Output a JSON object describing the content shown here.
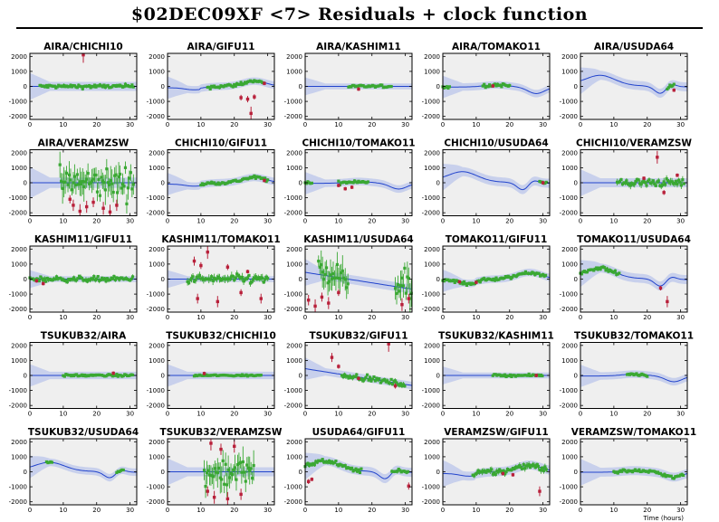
{
  "header": {
    "title": "$02DEC09XF <7> Residuals + clock function"
  },
  "chart_data": {
    "type": "scatter",
    "title": "$02DEC09XF <7> Residuals + clock function",
    "xlabel": "Time (hours)",
    "xlim": [
      0,
      32
    ],
    "ylim": [
      -2200,
      2200
    ],
    "x_ticks": [
      0,
      10,
      20,
      30
    ],
    "y_ticks": [
      -2000,
      -1000,
      0,
      1000,
      2000
    ],
    "grid": false,
    "colors": {
      "good": "#3aa833",
      "flagged": "#b8203a",
      "clock_line": "#2244cc",
      "clock_band": "#c8d0ec",
      "panel_bg": "#efefef"
    },
    "panels": [
      {
        "name": "AIRA/CHICHI10",
        "shape": "flat",
        "band": 300,
        "amp": 0,
        "noise": 90,
        "coverage": [
          [
            3,
            31
          ]
        ],
        "flagged": [
          [
            16,
            2100
          ]
        ]
      },
      {
        "name": "AIRA/GIFU11",
        "shape": "bump",
        "band": 250,
        "amp": 350,
        "noise": 90,
        "coverage": [
          [
            12,
            29
          ]
        ],
        "flagged": [
          [
            22,
            -750
          ],
          [
            24,
            -850
          ],
          [
            26,
            -700
          ],
          [
            25,
            -1800
          ],
          [
            29,
            200
          ]
        ]
      },
      {
        "name": "AIRA/KASHIM11",
        "shape": "flat",
        "band": 200,
        "amp": 0,
        "noise": 60,
        "coverage": [
          [
            13,
            26
          ]
        ],
        "flagged": [
          [
            16,
            -180
          ]
        ]
      },
      {
        "name": "AIRA/TOMAKO11",
        "shape": "tomako",
        "band": 250,
        "amp": 400,
        "noise": 80,
        "coverage": [
          [
            0,
            2
          ],
          [
            12,
            20
          ]
        ],
        "flagged": [
          [
            15,
            30
          ]
        ]
      },
      {
        "name": "AIRA/USUDA64",
        "shape": "usuda",
        "band": 300,
        "amp": 700,
        "noise": 80,
        "coverage": [
          [
            26,
            28
          ]
        ],
        "flagged": [
          [
            28,
            -250
          ]
        ]
      },
      {
        "name": "AIRA/VERAMZSW",
        "shape": "flat",
        "band": 350,
        "amp": 0,
        "noise": 700,
        "coverage": [
          [
            9,
            31
          ]
        ],
        "flagged": [
          [
            12,
            -1100
          ],
          [
            13,
            -1500
          ],
          [
            15,
            -1900
          ],
          [
            17,
            -1600
          ],
          [
            19,
            -1300
          ],
          [
            22,
            -1700
          ],
          [
            24,
            -1950
          ],
          [
            26,
            -1500
          ]
        ]
      },
      {
        "name": "CHICHI10/GIFU11",
        "shape": "bump",
        "band": 250,
        "amp": 350,
        "noise": 80,
        "coverage": [
          [
            10,
            30
          ]
        ],
        "flagged": [
          [
            29,
            150
          ]
        ]
      },
      {
        "name": "CHICHI10/TOMAKO11",
        "shape": "tomako",
        "band": 250,
        "amp": 350,
        "noise": 80,
        "coverage": [
          [
            0,
            2
          ],
          [
            10,
            19
          ]
        ],
        "flagged": [
          [
            10,
            -180
          ],
          [
            12,
            -400
          ],
          [
            14,
            -300
          ]
        ]
      },
      {
        "name": "CHICHI10/USUDA64",
        "shape": "usuda",
        "band": 300,
        "amp": 700,
        "noise": 80,
        "coverage": [
          [
            29,
            31
          ]
        ],
        "flagged": [
          [
            30,
            0
          ]
        ]
      },
      {
        "name": "CHICHI10/VERAMZSW",
        "shape": "flat",
        "band": 300,
        "amp": 0,
        "noise": 180,
        "coverage": [
          [
            11,
            31
          ]
        ],
        "flagged": [
          [
            19,
            300
          ],
          [
            23,
            1700
          ],
          [
            25,
            -650
          ],
          [
            29,
            500
          ]
        ]
      },
      {
        "name": "KASHIM11/GIFU11",
        "shape": "flat",
        "band": 200,
        "amp": 0,
        "noise": 120,
        "coverage": [
          [
            0,
            31
          ]
        ],
        "flagged": [
          [
            2,
            -120
          ],
          [
            4,
            -300
          ]
        ]
      },
      {
        "name": "KASHIM11/TOMAKO11",
        "shape": "flat",
        "band": 200,
        "amp": 0,
        "noise": 200,
        "coverage": [
          [
            6,
            30
          ]
        ],
        "flagged": [
          [
            8,
            1200
          ],
          [
            9,
            -1300
          ],
          [
            10,
            900
          ],
          [
            12,
            1800
          ],
          [
            15,
            -1500
          ],
          [
            18,
            800
          ],
          [
            22,
            -900
          ],
          [
            24,
            500
          ],
          [
            28,
            -1300
          ]
        ]
      },
      {
        "name": "KASHIM11/USUDA64",
        "shape": "slope",
        "band": 300,
        "amp": 0,
        "noise": 700,
        "coverage": [
          [
            4,
            13
          ],
          [
            27,
            32
          ]
        ],
        "flagged": [
          [
            1,
            -1400
          ],
          [
            3,
            -1800
          ],
          [
            5,
            -1200
          ],
          [
            7,
            -1600
          ],
          [
            10,
            -900
          ],
          [
            29,
            -1700
          ],
          [
            31,
            -1300
          ]
        ]
      },
      {
        "name": "TOMAKO11/GIFU11",
        "shape": "bump",
        "band": 250,
        "amp": 450,
        "noise": 90,
        "coverage": [
          [
            0,
            31
          ]
        ],
        "flagged": [
          [
            5,
            -180
          ],
          [
            10,
            -220
          ]
        ]
      },
      {
        "name": "TOMAKO11/USUDA64",
        "shape": "usuda",
        "band": 300,
        "amp": 700,
        "noise": 100,
        "coverage": [
          [
            0,
            12
          ]
        ],
        "flagged": [
          [
            24,
            -600
          ],
          [
            26,
            -1500
          ]
        ]
      },
      {
        "name": "TSUKUB32/AIRA",
        "shape": "flat",
        "band": 250,
        "amp": 0,
        "noise": 50,
        "coverage": [
          [
            10,
            31
          ]
        ],
        "flagged": [
          [
            25,
            150
          ]
        ]
      },
      {
        "name": "TSUKUB32/CHICHI10",
        "shape": "flat",
        "band": 250,
        "amp": 0,
        "noise": 40,
        "coverage": [
          [
            8,
            28
          ]
        ],
        "flagged": [
          [
            11,
            130
          ]
        ]
      },
      {
        "name": "TSUKUB32/GIFU11",
        "shape": "slope",
        "band": 250,
        "amp": 0,
        "noise": 120,
        "coverage": [
          [
            11,
            30
          ]
        ],
        "flagged": [
          [
            8,
            1200
          ],
          [
            10,
            600
          ],
          [
            16,
            -200
          ],
          [
            25,
            2100
          ],
          [
            27,
            -700
          ]
        ]
      },
      {
        "name": "TSUKUB32/KASHIM11",
        "shape": "flat",
        "band": 200,
        "amp": 0,
        "noise": 50,
        "coverage": [
          [
            15,
            30
          ]
        ],
        "flagged": [
          [
            28,
            0
          ]
        ]
      },
      {
        "name": "TSUKUB32/TOMAKO11",
        "shape": "tomako",
        "band": 250,
        "amp": 350,
        "noise": 60,
        "coverage": [
          [
            14,
            20
          ]
        ],
        "flagged": []
      },
      {
        "name": "TSUKUB32/USUDA64",
        "shape": "usuda",
        "band": 250,
        "amp": 600,
        "noise": 40,
        "coverage": [
          [
            5,
            7
          ],
          [
            26,
            28
          ]
        ],
        "flagged": []
      },
      {
        "name": "TSUKUB32/VERAMZSW",
        "shape": "flat",
        "band": 300,
        "amp": 0,
        "noise": 700,
        "coverage": [
          [
            11,
            26
          ]
        ],
        "flagged": [
          [
            12,
            -1300
          ],
          [
            13,
            1900
          ],
          [
            14,
            -1700
          ],
          [
            16,
            1500
          ],
          [
            18,
            -1800
          ],
          [
            20,
            1700
          ],
          [
            22,
            -1500
          ]
        ]
      },
      {
        "name": "USUDA64/GIFU11",
        "shape": "usuda",
        "band": 300,
        "amp": 700,
        "noise": 100,
        "coverage": [
          [
            0,
            17
          ],
          [
            26,
            31
          ]
        ],
        "flagged": [
          [
            1,
            -650
          ],
          [
            2,
            -500
          ],
          [
            31,
            -950
          ]
        ]
      },
      {
        "name": "VERAMZSW/GIFU11",
        "shape": "bump",
        "band": 300,
        "amp": 450,
        "noise": 160,
        "coverage": [
          [
            9,
            31
          ]
        ],
        "flagged": [
          [
            18,
            -120
          ],
          [
            21,
            -200
          ],
          [
            29,
            -1300
          ]
        ]
      },
      {
        "name": "VERAMZSW/TOMAKO11",
        "shape": "tomako",
        "band": 300,
        "amp": 300,
        "noise": 80,
        "coverage": [
          [
            10,
            31
          ]
        ],
        "flagged": []
      }
    ]
  }
}
